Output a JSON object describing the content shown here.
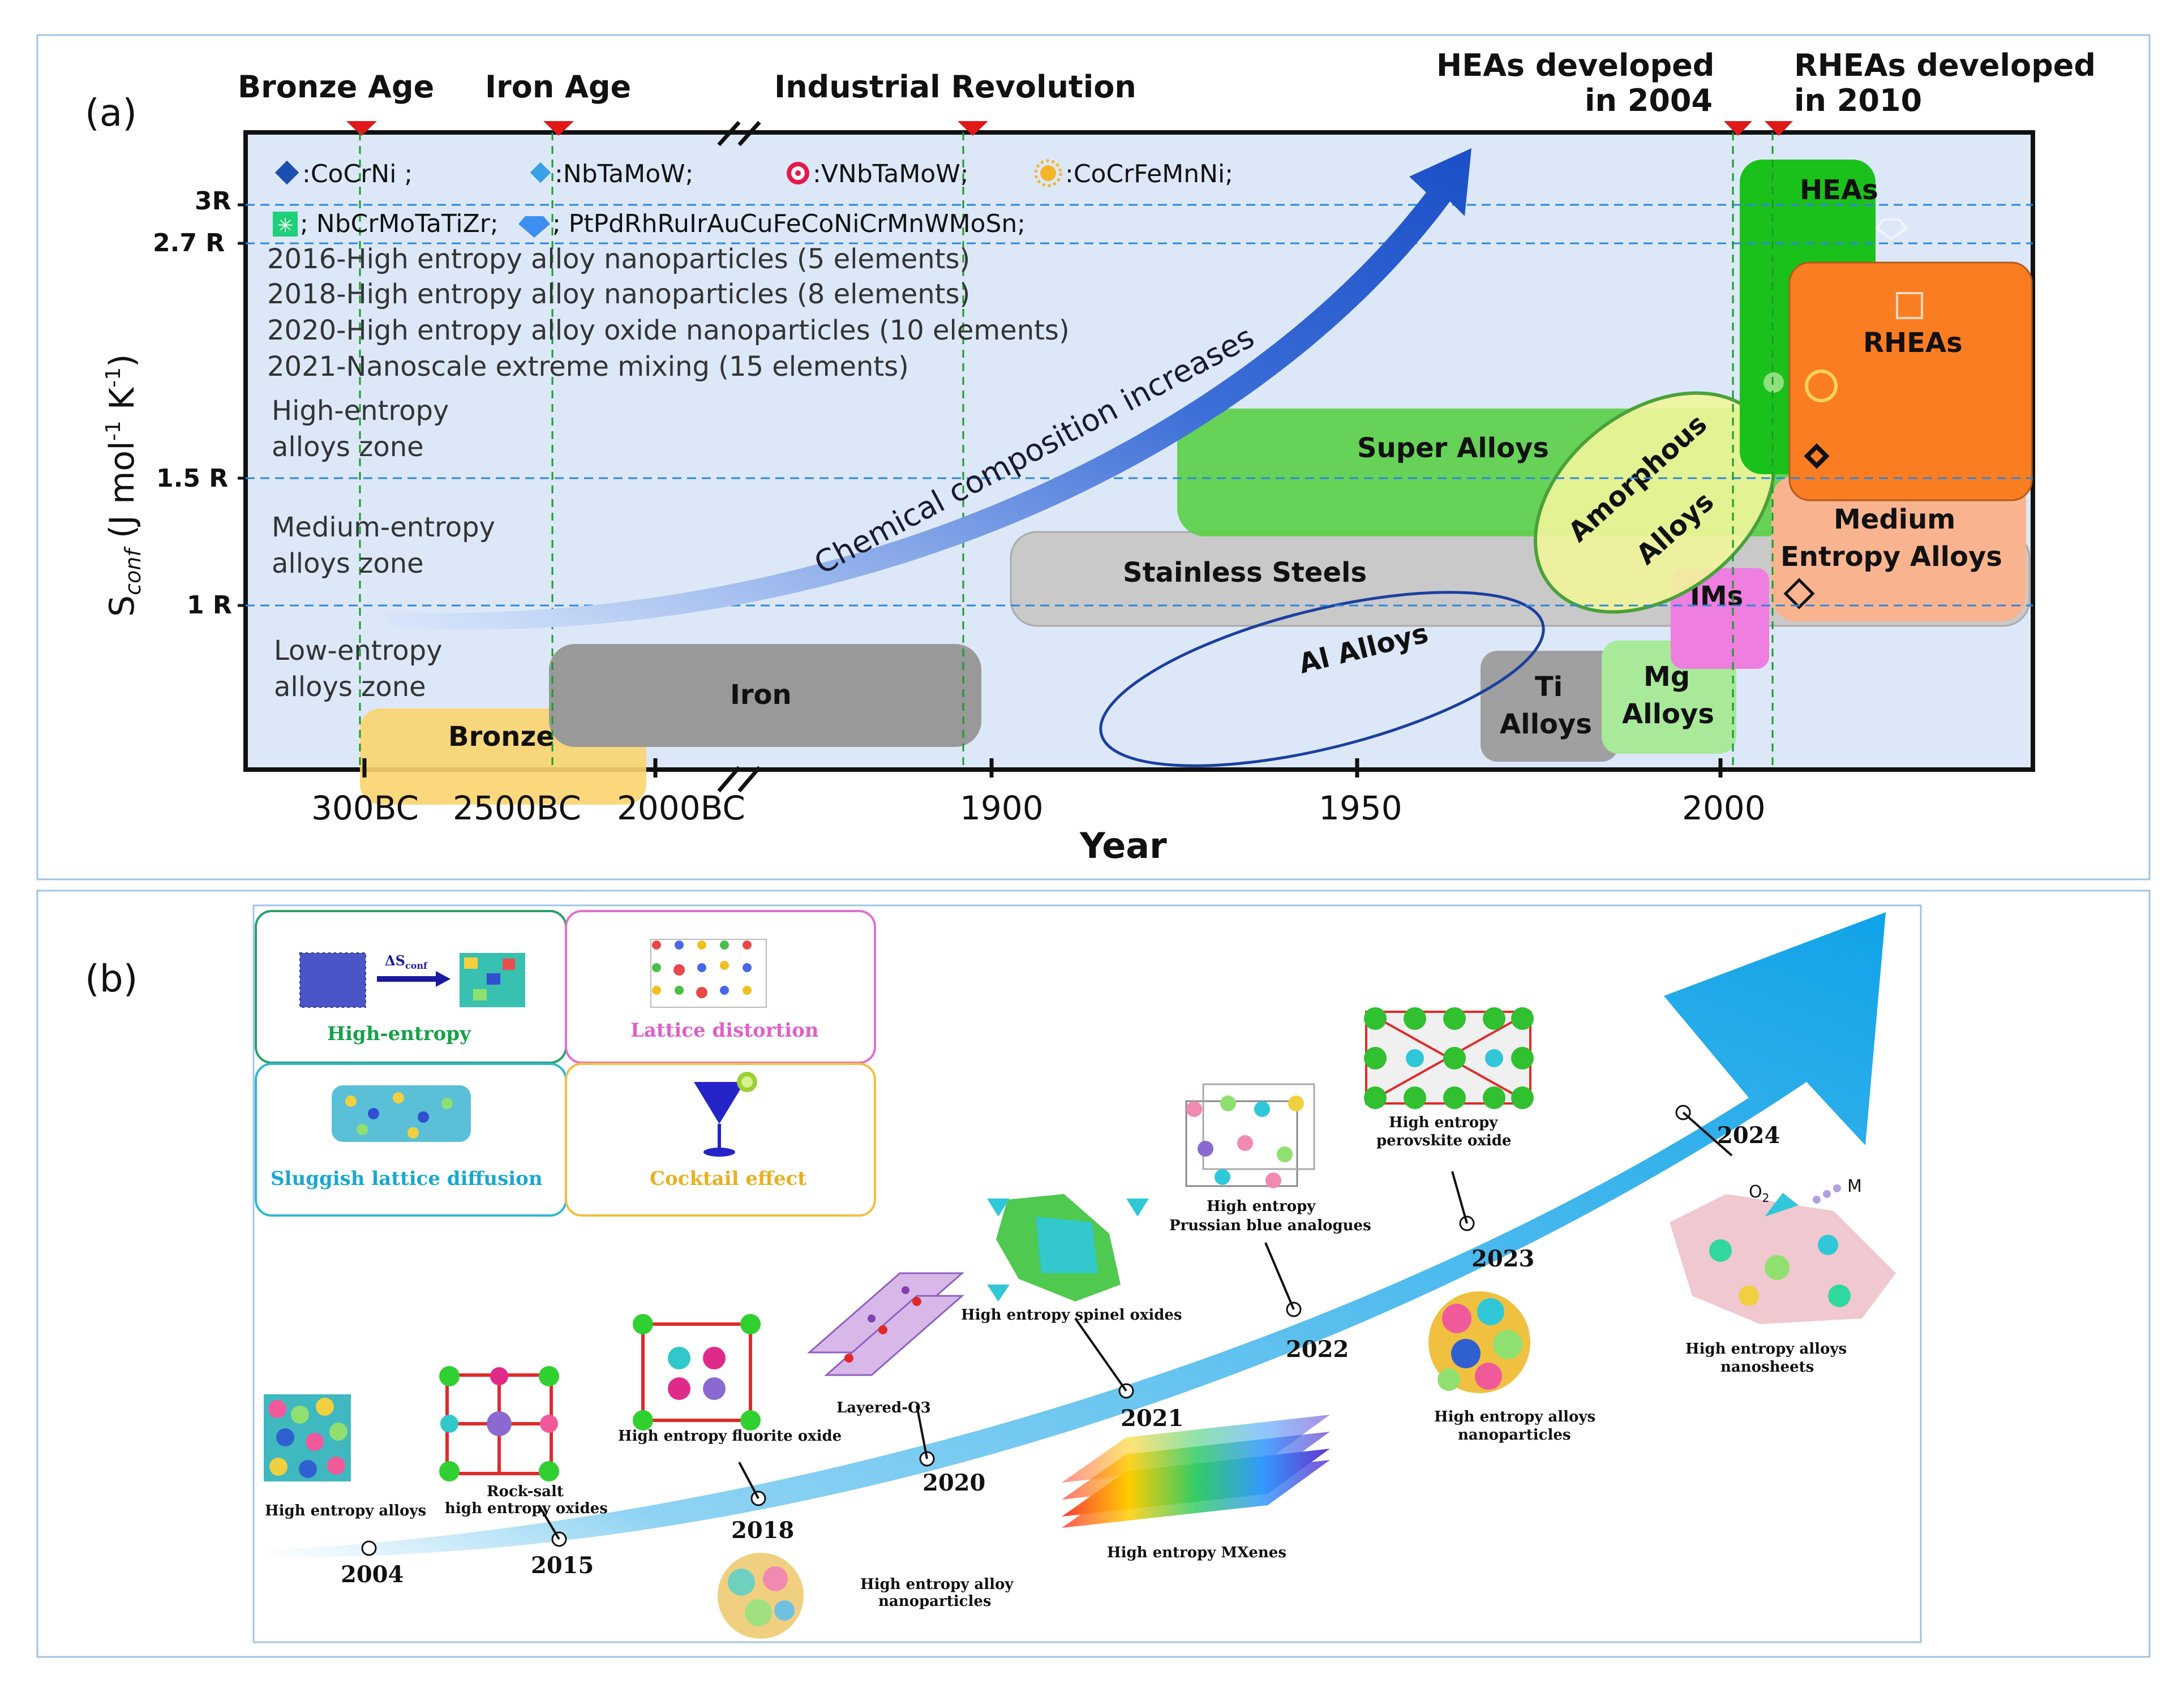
{
  "panel_a": {
    "label": "(a)",
    "eras": {
      "bronze_age": "Bronze Age",
      "iron_age": "Iron Age",
      "industrial": "Industrial Revolution",
      "heas_line1": "HEAs developed",
      "heas_line2": "in 2004",
      "rheas_line1": "RHEAs developed",
      "rheas_line2": "in 2010"
    },
    "legend": {
      "l1": ":CoCrNi ;",
      "l2": ":NbTaMoW;",
      "l3": ":VNbTaMoW;",
      "l4": ":CoCrFeMnNi;",
      "l5": "; NbCrMoTaTiZr;",
      "l6": "; PtPdRhRuIrAuCuFeCoNiCrMnWMoSn;"
    },
    "milestones": [
      "2016-High entropy alloy nanoparticles (5 elements)",
      "2018-High entropy alloy nanoparticles (8 elements)",
      "2020-High entropy alloy oxide nanoparticles (10 elements)",
      "2021-Nanoscale extreme mixing (15 elements)"
    ],
    "zones": {
      "high1": "High-entropy",
      "high2": "alloys zone",
      "med1": "Medium-entropy",
      "med2": "alloys zone",
      "low1": "Low-entropy",
      "low2": "alloys zone"
    },
    "arrow_text": "Chemical composition increases",
    "materials": {
      "bronze": "Bronze",
      "iron": "Iron",
      "super": "Super Alloys",
      "stainless": "Stainless Steels",
      "amorphous1": "Amorphous",
      "amorphous2": "Alloys",
      "al": "Al Alloys",
      "ti1": "Ti",
      "ti2": "Alloys",
      "mg1": "Mg",
      "mg2": "Alloys",
      "ims": "IMs",
      "heas": "HEAs",
      "rheas": "RHEAs",
      "mea1": "Medium",
      "mea2": "Entropy Alloys"
    },
    "y_axis": {
      "label_main": "S",
      "label_sub": "conf",
      "label_rest": " (J mol",
      "label_sup1": "-1",
      "label_k": " K",
      "label_sup2": "-1",
      "label_close": ")",
      "ticks": [
        "3R",
        "2.7 R",
        "1.5 R",
        "1 R"
      ]
    },
    "x_axis": {
      "title": "Year",
      "ticks": [
        "300BC",
        "2500BC",
        "2000BC",
        "1900",
        "1950",
        "2000"
      ]
    }
  },
  "panel_b": {
    "label": "(b)",
    "features": {
      "high_entropy": "High-entropy",
      "delta": "ΔS",
      "delta_sub": "conf",
      "lattice": "Lattice distortion",
      "sluggish": "Sluggish lattice diffusion",
      "cocktail": "Cocktail effect"
    },
    "years": [
      "2004",
      "2015",
      "2018",
      "2020",
      "2021",
      "2022",
      "2023",
      "2024"
    ],
    "materials": {
      "hea": "High entropy alloys",
      "rock1": "Rock-salt",
      "rock2": "high entropy oxides",
      "fluorite": "High entropy fluorite oxide",
      "np1": "High entropy alloy",
      "np2": "nanoparticles",
      "layered": "Layered-O3",
      "spinel": "High entropy spinel oxides",
      "mxene": "High entropy MXenes",
      "prussian1": "High entropy",
      "prussian2": "Prussian blue analogues",
      "perov1": "High entropy",
      "perov2": "perovskite oxide",
      "hea_np1": "High entropy alloys",
      "hea_np2": "nanoparticles",
      "sheets1": "High entropy alloys",
      "sheets2": "nanosheets",
      "o2": "O",
      "o2_sub": "2",
      "m": "M"
    }
  }
}
